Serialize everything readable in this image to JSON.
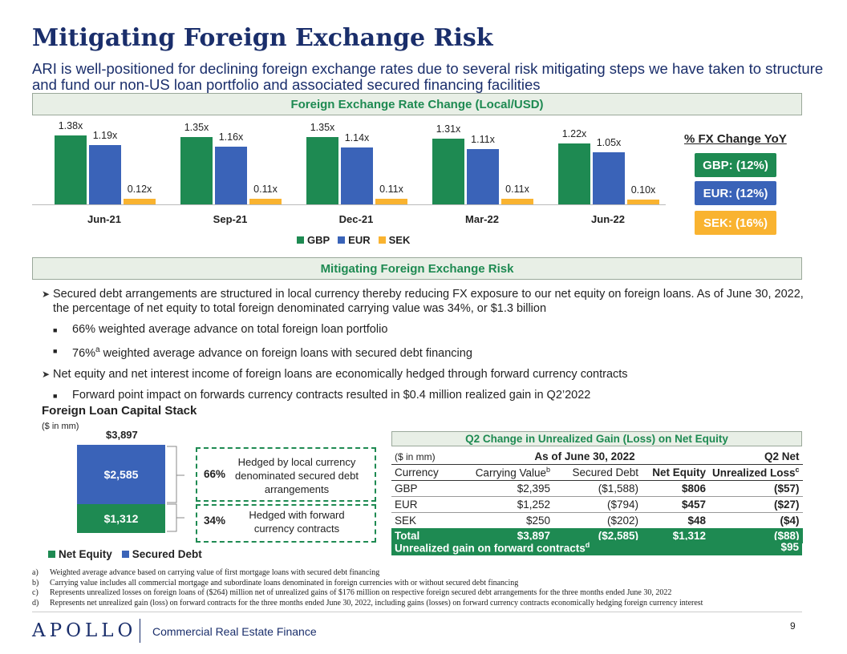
{
  "title": "Mitigating Foreign Exchange Risk",
  "subtitle": "ARI is well-positioned for declining foreign exchange rates due to several risk mitigating steps we have taken to structure and fund our non-US loan portfolio and associated secured financing facilities",
  "section1_title": "Foreign Exchange Rate Change (Local/USD)",
  "chart_data": {
    "type": "bar",
    "title": "Foreign Exchange Rate Change (Local/USD)",
    "categories": [
      "Jun-21",
      "Sep-21",
      "Dec-21",
      "Mar-22",
      "Jun-22"
    ],
    "series": [
      {
        "name": "GBP",
        "color": "#1e8a52",
        "values": [
          1.38,
          1.35,
          1.35,
          1.31,
          1.22
        ],
        "labels": [
          "1.38x",
          "1.35x",
          "1.35x",
          "1.31x",
          "1.22x"
        ]
      },
      {
        "name": "EUR",
        "color": "#3a63b8",
        "values": [
          1.19,
          1.16,
          1.14,
          1.11,
          1.05
        ],
        "labels": [
          "1.19x",
          "1.16x",
          "1.14x",
          "1.11x",
          "1.05x"
        ]
      },
      {
        "name": "SEK",
        "color": "#f9b330",
        "values": [
          0.12,
          0.11,
          0.11,
          0.11,
          0.1
        ],
        "labels": [
          "0.12x",
          "0.11x",
          "0.11x",
          "0.11x",
          "0.10x"
        ]
      }
    ],
    "ylim": [
      0,
      1.6
    ],
    "legend": "bottom-center"
  },
  "fx_change": {
    "title": "% FX Change YoY",
    "items": [
      {
        "label": "GBP: (12%)",
        "color": "#1e8a52"
      },
      {
        "label": "EUR: (12%)",
        "color": "#3a63b8"
      },
      {
        "label": "SEK: (16%)",
        "color": "#f9b330"
      }
    ]
  },
  "section2_title": "Mitigating Foreign Exchange Risk",
  "bullets": {
    "b1": "Secured debt arrangements are structured in local currency thereby reducing FX exposure to our net equity on foreign loans. As of June 30, 2022, the percentage of net equity to total foreign denominated carrying value was 34%, or $1.3 billion",
    "b1a": "66% weighted average advance on total foreign loan portfolio",
    "b1b_pre": "76%",
    "b1b_sup": "a",
    "b1b_post": " weighted average advance on foreign loans with secured debt financing",
    "b2": "Net equity and net interest income of foreign loans are economically hedged through forward currency contracts",
    "b2a": "Forward point impact on forwards currency contracts resulted in $0.4 million realized gain in Q2’2022"
  },
  "capital_stack": {
    "title": "Foreign Loan Capital Stack",
    "units": "($ in mm)",
    "total": "$3,897",
    "secured_debt": {
      "label": "$2,585",
      "value": 2585,
      "color": "#3a63b8"
    },
    "net_equity": {
      "label": "$1,312",
      "value": 1312,
      "color": "#1e8a52"
    },
    "hedge1_pct": "66%",
    "hedge1_text": "Hedged by local currency denominated secured debt arrangements",
    "hedge2_pct": "34%",
    "hedge2_text": "Hedged with forward currency contracts",
    "legend": [
      "Net Equity",
      "Secured Debt"
    ]
  },
  "table": {
    "title": "Q2 Change in Unrealized Gain (Loss) on Net Equity",
    "units": "($ in mm)",
    "as_of": "As of June 30, 2022",
    "q2net": "Q2 Net",
    "headers": [
      "Currency",
      "Carrying Value",
      "Secured Debt",
      "Net Equity",
      "Unrealized Loss"
    ],
    "carrying_sup": "b",
    "unrealized_sup": "c",
    "rows": [
      [
        "GBP",
        "$2,395",
        "($1,588)",
        "$806",
        "($57)"
      ],
      [
        "EUR",
        "$1,252",
        "($794)",
        "$457",
        "($27)"
      ],
      [
        "SEK",
        "$250",
        "($202)",
        "$48",
        "($4)"
      ]
    ],
    "total": [
      "Total",
      "$3,897",
      "($2,585)",
      "$1,312",
      "($88)"
    ],
    "forward_label": "Unrealized gain on forward contracts",
    "forward_sup": "d",
    "forward_value": "$95"
  },
  "footnotes": {
    "a_mark": "a)",
    "a": "Weighted average advance based on carrying value of first mortgage loans with secured debt financing",
    "b_mark": "b)",
    "b": "Carrying value includes all commercial mortgage and subordinate loans denominated in foreign currencies with or without secured debt financing",
    "c_mark": "c)",
    "c": "Represents unrealized losses on foreign loans of ($264) million net of unrealized gains of $176 million on respective foreign secured debt arrangements for the three months ended June 30, 2022",
    "d_mark": "d)",
    "d": "Represents net unrealized gain (loss) on forward contracts for the three months ended June 30, 2022, including gains (losses) on forward currency contracts economically hedging foreign currency interest"
  },
  "footer": {
    "logo": "APOLLO",
    "tagline": "Commercial Real Estate Finance",
    "page": "9"
  }
}
